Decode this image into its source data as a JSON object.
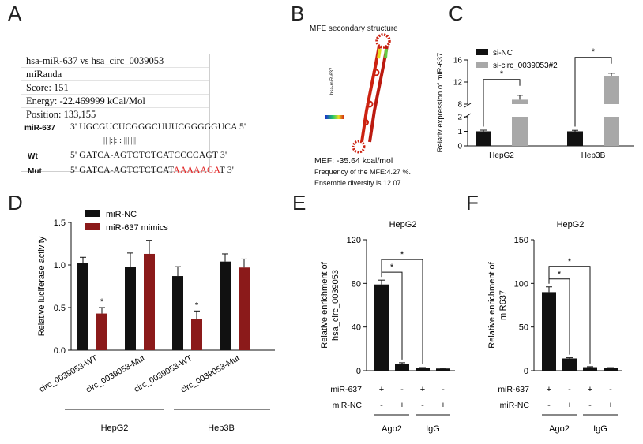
{
  "panel_letters": [
    "A",
    "B",
    "C",
    "D",
    "E",
    "F"
  ],
  "panel_a": {
    "rows": [
      "hsa-miR-637 vs hsa_circ_0039053",
      "miRanda",
      "Score: 151",
      "Energy: -22.469999 kCal/Mol",
      "Position: 133,155"
    ],
    "mir_label": "miR-637",
    "mir_seq": "3' UGCGUCUCGGGCUUUCGGGGGUCA 5'",
    "pairs": "|| |:|: : |||||||",
    "wt_label": "Wt",
    "wt_seq": "5' GATCA-AGTCTCTCATCCCCAGT 3'",
    "mut_label": "Mut",
    "mut_seq_a": "5' GATCA-AGTCTCTCAT",
    "mut_seq_b": "AAAAAGA",
    "mut_seq_c": "T 3'"
  },
  "panel_b": {
    "title": "MFE secondary structure",
    "side_label": "hsa-miR-637",
    "mef": "MEF:  -35.64 kcal/mol",
    "freq": "Frequency of the MFE:4.27 %.",
    "diversity": "Ensemble diversity is 12.07"
  },
  "chart_data": [
    {
      "id": "C",
      "type": "bar",
      "ylabel": "Relativ expression of miR-637",
      "categories": [
        "HepG2",
        "Hep3B"
      ],
      "series": [
        {
          "name": "si-NC",
          "color": "#111111",
          "values": [
            1.0,
            1.0
          ],
          "errors": [
            0.08,
            0.07
          ]
        },
        {
          "name": "si-circ_0039053#2",
          "color": "#a8a8a8",
          "values": [
            8.8,
            13.0
          ],
          "errors": [
            0.8,
            0.6
          ]
        }
      ],
      "broken_axis": true,
      "lower_ticks": [
        "0",
        "1",
        "2"
      ],
      "upper_ticks": [
        "8",
        "12",
        "16"
      ],
      "significance": [
        "*",
        "*"
      ]
    },
    {
      "id": "D",
      "type": "bar",
      "ylabel": "Relative luciferase activity",
      "ylim": [
        0,
        1.5
      ],
      "yticks": [
        "0.0",
        "0.5",
        "1.0",
        "1.5"
      ],
      "categories": [
        "circ_0039053-WT",
        "circ_0039053-Mut",
        "circ_0039053-WT",
        "circ_0039053-Mut"
      ],
      "groups": [
        "HepG2",
        "Hep3B"
      ],
      "series": [
        {
          "name": "miR-NC",
          "color": "#111111",
          "values": [
            1.02,
            0.98,
            0.87,
            1.04
          ],
          "errors": [
            0.07,
            0.16,
            0.11,
            0.09
          ]
        },
        {
          "name": "miR-637  mimics",
          "color": "#8b1a1a",
          "values": [
            0.43,
            1.13,
            0.37,
            0.97
          ],
          "errors": [
            0.07,
            0.16,
            0.09,
            0.1
          ]
        }
      ],
      "significance": [
        "*",
        "",
        "*",
        ""
      ]
    },
    {
      "id": "E",
      "type": "bar",
      "title": "HepG2",
      "ylabel": "Relative enrichment of hsa_circ_0039053",
      "ylim": [
        0,
        120
      ],
      "yticks": [
        "0",
        "40",
        "80",
        "120"
      ],
      "values": [
        79,
        6.5,
        2.5,
        2.0
      ],
      "errors": [
        4,
        0.8,
        0.4,
        0.3
      ],
      "row_labels": [
        "miR-637",
        "miR-NC"
      ],
      "row_values": [
        [
          "+",
          "-",
          "+",
          "-"
        ],
        [
          "-",
          "+",
          "-",
          "+"
        ]
      ],
      "groups": [
        "Ago2",
        "IgG"
      ],
      "significance": [
        "*",
        "*"
      ]
    },
    {
      "id": "F",
      "type": "bar",
      "title": "HepG2",
      "ylabel": "Relative enrichment of miR637",
      "ylim": [
        0,
        150
      ],
      "yticks": [
        "0",
        "50",
        "100",
        "150"
      ],
      "values": [
        90,
        14,
        4,
        3
      ],
      "errors": [
        6,
        0.8,
        0.6,
        0.5
      ],
      "row_labels": [
        "miR-637",
        "miR-NC"
      ],
      "row_values": [
        [
          "+",
          "-",
          "+",
          "-"
        ],
        [
          "-",
          "+",
          "-",
          "+"
        ]
      ],
      "groups": [
        "Ago2",
        "IgG"
      ],
      "significance": [
        "*",
        "*"
      ]
    }
  ]
}
